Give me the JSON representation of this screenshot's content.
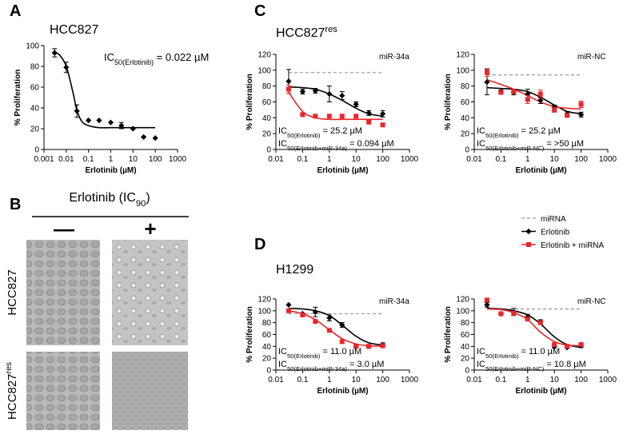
{
  "panels": [
    {
      "label": "A",
      "title": "HCC827"
    },
    {
      "label": "B"
    },
    {
      "label": "C",
      "title": "HCC827",
      "title_sup": "res"
    },
    {
      "label": "D",
      "title": "H1299"
    }
  ],
  "panel_b": {
    "treatment": "Erlotinib (IC",
    "treatment_sub": "90",
    "treatment_end": ")",
    "columns": [
      "—",
      "+"
    ],
    "rows": [
      {
        "label": "HCC827"
      },
      {
        "label": "HCC827",
        "sup": "res"
      }
    ]
  },
  "legend": {
    "items": [
      {
        "name": "miRNA",
        "color": "#999999",
        "style": "dashed"
      },
      {
        "name": "Erlotinib",
        "color": "#000000",
        "marker": "diamond"
      },
      {
        "name": "Erlotinib + miRNA",
        "color": "#e8262b",
        "marker": "square"
      }
    ]
  },
  "chart_data": [
    {
      "type": "scatter",
      "xscale": "log",
      "xlabel": "Erlotinib (µM)",
      "ylabel": "% Proliferation",
      "xlim": [
        0.001,
        1000
      ],
      "xticks": [
        0.001,
        0.01,
        0.1,
        1,
        10,
        100,
        1000
      ],
      "ylim": [
        0,
        100
      ],
      "yticks": [
        0,
        20,
        40,
        60,
        80,
        100
      ],
      "x": [
        0.003,
        0.01,
        0.03,
        0.1,
        0.3,
        1,
        3,
        10,
        30,
        100
      ],
      "series": [
        {
          "color": "#000000",
          "marker": "diamond",
          "values": [
            93,
            79,
            37,
            28,
            28,
            26,
            23,
            20,
            12,
            11
          ],
          "errors": [
            4,
            5,
            6,
            null,
            null,
            null,
            3,
            null,
            null,
            null
          ]
        }
      ],
      "curves": [
        {
          "color": "#000000",
          "x": [
            0.003,
            0.005,
            0.01,
            0.02,
            0.03,
            0.05,
            0.1,
            0.3,
            1,
            10,
            100
          ],
          "values": [
            93,
            91,
            80,
            55,
            38,
            27,
            23,
            21,
            21,
            21,
            21
          ]
        }
      ],
      "annotations": [
        {
          "prefix": "IC",
          "sub": "50(Erlotinib)",
          "text": " = 0.022 µM"
        }
      ]
    },
    {
      "type": "scatter",
      "xscale": "log",
      "xlabel": "Erlotinib (µM)",
      "ylabel": "% Proliferation",
      "label": "miR-34a",
      "xlim": [
        0.01,
        1000
      ],
      "xticks": [
        0.01,
        0.1,
        1,
        10,
        100,
        1000
      ],
      "ylim": [
        0,
        120
      ],
      "yticks": [
        0,
        20,
        40,
        60,
        80,
        100,
        120
      ],
      "x": [
        0.03,
        0.1,
        0.3,
        1,
        3,
        10,
        30,
        100
      ],
      "reference": {
        "color": "#999999",
        "x": [
          0.03,
          100
        ],
        "values": [
          97,
          97
        ]
      },
      "series": [
        {
          "color": "#000000",
          "marker": "diamond",
          "values": [
            86,
            73,
            74,
            70,
            68,
            57,
            46,
            45
          ],
          "errors": [
            15,
            3,
            3,
            10,
            5,
            3,
            3,
            4
          ]
        },
        {
          "color": "#e8262b",
          "marker": "square",
          "values": [
            76,
            44,
            42,
            42,
            42,
            42,
            35,
            31
          ],
          "errors": [
            5,
            2,
            null,
            null,
            2,
            null,
            3,
            null
          ]
        }
      ],
      "curves": [
        {
          "color": "#000000",
          "x": [
            0.03,
            0.1,
            0.3,
            1,
            3,
            10,
            30,
            100
          ],
          "values": [
            79,
            78,
            76,
            70,
            62,
            52,
            45,
            42
          ]
        },
        {
          "color": "#e8262b",
          "x": [
            0.03,
            0.1,
            0.3,
            1,
            3,
            10,
            30,
            100
          ],
          "values": [
            72,
            48,
            40,
            38,
            38,
            38,
            38,
            38
          ]
        }
      ],
      "annotations": [
        {
          "prefix": "IC",
          "sub": "50(Erlotinib)",
          "text": " = 25.2 µM"
        },
        {
          "prefix": "IC",
          "sub": "50(Erlotinib+miR-34a)",
          "text": " = 0.094 µM"
        }
      ]
    },
    {
      "type": "scatter",
      "xscale": "log",
      "xlabel": "Erlotinib (µM)",
      "ylabel": "% Proliferation",
      "label": "miR-NC",
      "xlim": [
        0.01,
        1000
      ],
      "xticks": [
        0.01,
        0.1,
        1,
        10,
        100,
        1000
      ],
      "ylim": [
        0,
        120
      ],
      "yticks": [
        0,
        20,
        40,
        60,
        80,
        100,
        120
      ],
      "x": [
        0.03,
        0.1,
        0.3,
        1,
        3,
        10,
        30,
        100
      ],
      "reference": {
        "color": "#999999",
        "x": [
          0.03,
          100
        ],
        "values": [
          94,
          94
        ]
      },
      "series": [
        {
          "color": "#000000",
          "marker": "diamond",
          "values": [
            85,
            73,
            72,
            70,
            62,
            53,
            45,
            44
          ],
          "errors": [
            16,
            2,
            3,
            6,
            4,
            3,
            3,
            3
          ]
        },
        {
          "color": "#e8262b",
          "marker": "square",
          "values": [
            97,
            72,
            73,
            63,
            70,
            50,
            43,
            57
          ],
          "errors": [
            5,
            null,
            null,
            5,
            5,
            3,
            2,
            4
          ]
        }
      ],
      "curves": [
        {
          "color": "#000000",
          "x": [
            0.03,
            0.1,
            0.3,
            1,
            3,
            10,
            30,
            100
          ],
          "values": [
            78,
            77,
            76,
            73,
            66,
            56,
            48,
            45
          ]
        },
        {
          "color": "#e8262b",
          "x": [
            0.03,
            0.1,
            0.3,
            1,
            3,
            10,
            30,
            100
          ],
          "values": [
            88,
            82,
            76,
            68,
            60,
            54,
            52,
            51
          ]
        }
      ],
      "annotations": [
        {
          "prefix": "IC",
          "sub": "50(Erlotinib)",
          "text": " = 25.2 µM"
        },
        {
          "prefix": "IC",
          "sub": "50(Erlotinib+miR-NC)",
          "text": " =  >50 µM"
        }
      ]
    },
    {
      "type": "scatter",
      "xscale": "log",
      "xlabel": "Erlotinib (µM)",
      "ylabel": "% Proliferation",
      "label": "miR-34a",
      "xlim": [
        0.01,
        1000
      ],
      "xticks": [
        0.01,
        0.1,
        1,
        10,
        100,
        1000
      ],
      "ylim": [
        0,
        120
      ],
      "yticks": [
        0,
        20,
        40,
        60,
        80,
        100,
        120
      ],
      "x": [
        0.03,
        0.1,
        0.3,
        1,
        3,
        10,
        30,
        100
      ],
      "reference": {
        "color": "#999999",
        "x": [
          0.03,
          100
        ],
        "values": [
          95,
          95
        ]
      },
      "series": [
        {
          "color": "#000000",
          "marker": "diamond",
          "values": [
            110,
            95,
            98,
            88,
            76,
            40,
            40,
            42
          ],
          "errors": [
            null,
            null,
            8,
            5,
            4,
            null,
            3,
            4
          ]
        },
        {
          "color": "#e8262b",
          "marker": "square",
          "values": [
            100,
            93,
            82,
            67,
            48,
            40,
            40,
            41
          ],
          "errors": [
            3,
            null,
            null,
            null,
            null,
            3,
            null,
            3
          ]
        }
      ],
      "curves": [
        {
          "color": "#000000",
          "x": [
            0.03,
            0.1,
            0.3,
            1,
            3,
            10,
            30,
            100
          ],
          "values": [
            104,
            103,
            100,
            92,
            76,
            57,
            46,
            42
          ]
        },
        {
          "color": "#e8262b",
          "x": [
            0.03,
            0.1,
            0.3,
            1,
            3,
            10,
            30,
            100
          ],
          "values": [
            100,
            95,
            85,
            68,
            53,
            44,
            41,
            40
          ]
        }
      ],
      "annotations": [
        {
          "prefix": "IC",
          "sub": "50(Erlotinib)",
          "text": " = 11.0 µM"
        },
        {
          "prefix": "IC",
          "sub": "50(Erlotinib+miR-34a)",
          "text": " = 3.0 µM"
        }
      ]
    },
    {
      "type": "scatter",
      "xscale": "log",
      "xlabel": "Erlotinib (µM)",
      "ylabel": "% Proliferation",
      "label": "miR-NC",
      "xlim": [
        0.01,
        1000
      ],
      "xticks": [
        0.01,
        0.1,
        1,
        10,
        100,
        1000
      ],
      "ylim": [
        0,
        120
      ],
      "yticks": [
        0,
        20,
        40,
        60,
        80,
        100,
        120
      ],
      "x": [
        0.03,
        0.1,
        0.3,
        1,
        3,
        10,
        30,
        100
      ],
      "reference": {
        "color": "#999999",
        "x": [
          0.03,
          100
        ],
        "values": [
          103,
          103
        ]
      },
      "series": [
        {
          "color": "#000000",
          "marker": "diamond",
          "values": [
            110,
            95,
            98,
            90,
            81,
            40,
            38,
            41
          ],
          "errors": [
            4,
            null,
            6,
            4,
            4,
            3,
            null,
            3
          ]
        },
        {
          "color": "#e8262b",
          "marker": "square",
          "values": [
            118,
            95,
            96,
            86,
            80,
            43,
            40,
            43
          ],
          "errors": [
            3,
            null,
            null,
            3,
            3,
            null,
            null,
            3
          ]
        }
      ],
      "curves": [
        {
          "color": "#000000",
          "x": [
            0.03,
            0.1,
            0.3,
            1,
            3,
            10,
            30,
            100
          ],
          "values": [
            104,
            103,
            100,
            93,
            78,
            56,
            43,
            38
          ]
        },
        {
          "color": "#e8262b",
          "x": [
            0.03,
            0.1,
            0.3,
            1,
            3,
            10,
            30,
            100
          ],
          "values": [
            103,
            102,
            97,
            85,
            64,
            48,
            42,
            41
          ]
        }
      ],
      "annotations": [
        {
          "prefix": "IC",
          "sub": "50(Erlotinib)",
          "text": " = 11.0 µM"
        },
        {
          "prefix": "IC",
          "sub": "50(Erlotinib+miR-NC)",
          "text": " = 10.8 µM"
        }
      ]
    }
  ]
}
